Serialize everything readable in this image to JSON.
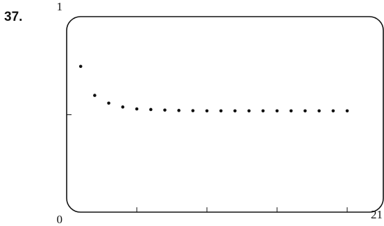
{
  "problem_number": "37.",
  "chart_data": {
    "type": "scatter",
    "title": "",
    "xlabel": "",
    "ylabel": "",
    "xlim": [
      0,
      21
    ],
    "ylim": [
      0,
      1
    ],
    "x_tick_labels": [
      "0",
      "21"
    ],
    "y_tick_labels": [
      "1"
    ],
    "x_ticks": [
      5,
      10,
      15,
      20
    ],
    "y_ticks": [
      0.5
    ],
    "grid": false,
    "marker_color": "#111111",
    "series": [
      {
        "x": [
          1,
          2,
          3,
          4,
          5,
          6,
          7,
          8,
          9,
          10,
          11,
          12,
          13,
          14,
          15,
          16,
          17,
          18,
          19,
          20
        ],
        "y": [
          0.75,
          0.6,
          0.56,
          0.54,
          0.53,
          0.527,
          0.524,
          0.522,
          0.521,
          0.52,
          0.52,
          0.52,
          0.52,
          0.52,
          0.52,
          0.52,
          0.52,
          0.52,
          0.52,
          0.52
        ]
      }
    ]
  }
}
